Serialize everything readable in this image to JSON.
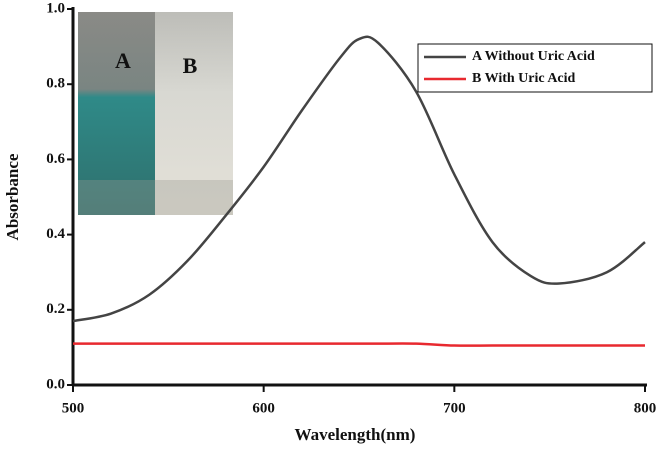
{
  "chart_data": {
    "type": "line",
    "x_label": "Wavelength(nm)",
    "y_label": "Absorbance",
    "annotations": [
      "A",
      "B"
    ],
    "x": [
      500,
      520,
      540,
      560,
      580,
      600,
      620,
      640,
      650,
      660,
      680,
      700,
      720,
      740,
      755,
      780,
      800
    ],
    "series": [
      {
        "name": "A Without Uric Acid",
        "color": "#444444",
        "values": [
          0.17,
          0.19,
          0.24,
          0.33,
          0.45,
          0.58,
          0.73,
          0.87,
          0.92,
          0.91,
          0.78,
          0.56,
          0.38,
          0.29,
          0.27,
          0.3,
          0.38
        ]
      },
      {
        "name": "B With Uric Acid",
        "color": "#e8292f",
        "values": [
          0.11,
          0.11,
          0.11,
          0.11,
          0.11,
          0.11,
          0.11,
          0.11,
          0.11,
          0.11,
          0.11,
          0.105,
          0.105,
          0.105,
          0.105,
          0.105,
          0.105
        ]
      }
    ],
    "xlim": [
      500,
      800
    ],
    "xticks": [
      500,
      600,
      700,
      800
    ],
    "ylim": [
      0,
      1
    ],
    "yticks": [
      {
        "value": 0,
        "label": "0.0"
      },
      0.2,
      0.4,
      0.6,
      0.8,
      {
        "value": 1,
        "label": "1.0"
      }
    ],
    "legend": "upper right"
  }
}
